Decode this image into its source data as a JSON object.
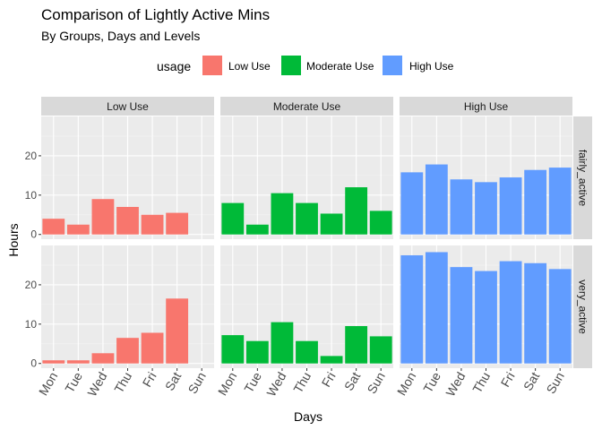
{
  "chart_data": {
    "type": "bar",
    "title": "Comparison of Lightly Active Mins",
    "subtitle": "By Groups, Days and Levels",
    "xlabel": "Days",
    "ylabel": "Hours",
    "legend": {
      "title": "usage",
      "placement": "top",
      "entries": [
        {
          "name": "Low Use",
          "color": "#F8766D"
        },
        {
          "name": "Moderate Use",
          "color": "#00BA38"
        },
        {
          "name": "High Use",
          "color": "#619CFF"
        }
      ]
    },
    "categories": [
      "Mon",
      "Tue",
      "Wed",
      "Thu",
      "Fri",
      "Sat",
      "Sun"
    ],
    "ylim": [
      -1.2,
      30
    ],
    "yticks": [
      0,
      10,
      20
    ],
    "grid": true,
    "columns": [
      "Low Use",
      "Moderate Use",
      "High Use"
    ],
    "rows": [
      "fairly_active",
      "very_active"
    ],
    "panels": [
      {
        "row": "fairly_active",
        "column": "Low Use",
        "values": [
          4,
          2.5,
          9,
          7,
          5,
          5.5,
          null
        ]
      },
      {
        "row": "fairly_active",
        "column": "Moderate Use",
        "values": [
          8,
          2.5,
          10.5,
          8,
          5.3,
          12,
          6
        ]
      },
      {
        "row": "fairly_active",
        "column": "High Use",
        "values": [
          15.8,
          17.8,
          14,
          13.3,
          14.5,
          16.4,
          17
        ]
      },
      {
        "row": "very_active",
        "column": "Low Use",
        "values": [
          0.8,
          0.8,
          2.6,
          6.5,
          7.8,
          16.5,
          null
        ]
      },
      {
        "row": "very_active",
        "column": "Moderate Use",
        "values": [
          7.2,
          5.7,
          10.5,
          5.7,
          1.9,
          9.5,
          6.9
        ]
      },
      {
        "row": "very_active",
        "column": "High Use",
        "values": [
          27.5,
          28.3,
          24.5,
          23.5,
          26,
          25.5,
          24
        ]
      }
    ]
  }
}
